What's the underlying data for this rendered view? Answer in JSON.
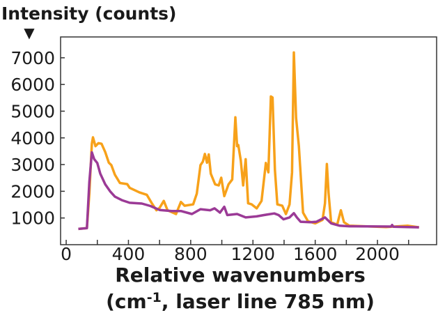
{
  "chart_data": {
    "type": "line",
    "title": "",
    "ylabel": "Intensity (counts)",
    "ylabel_arrow": "▼",
    "xlabel": "Relative wavenumbers",
    "xlabel_line2_pre": "(cm",
    "xlabel_line2_sup": "-1",
    "xlabel_line2_post": ", laser line 785 nm)",
    "xlim": [
      -36,
      2380
    ],
    "ylim": [
      0,
      7780
    ],
    "xticks": [
      0,
      400,
      800,
      1200,
      1600,
      2000
    ],
    "xticks_minor": [
      200,
      600,
      1000,
      1400,
      1800,
      2200
    ],
    "yticks": [
      1000,
      2000,
      3000,
      4000,
      5000,
      6000,
      7000
    ],
    "grid": false,
    "legend": "none",
    "series": [
      {
        "color": "#F7A11A",
        "points": [
          [
            78,
            590
          ],
          [
            133,
            620
          ],
          [
            149,
            1910
          ],
          [
            165,
            3780
          ],
          [
            172,
            4020
          ],
          [
            188,
            3690
          ],
          [
            207,
            3800
          ],
          [
            227,
            3780
          ],
          [
            251,
            3470
          ],
          [
            274,
            3070
          ],
          [
            290,
            2980
          ],
          [
            313,
            2620
          ],
          [
            345,
            2310
          ],
          [
            392,
            2270
          ],
          [
            408,
            2130
          ],
          [
            470,
            1960
          ],
          [
            518,
            1870
          ],
          [
            549,
            1560
          ],
          [
            580,
            1290
          ],
          [
            600,
            1380
          ],
          [
            627,
            1640
          ],
          [
            651,
            1290
          ],
          [
            706,
            1150
          ],
          [
            737,
            1600
          ],
          [
            761,
            1460
          ],
          [
            816,
            1510
          ],
          [
            839,
            1910
          ],
          [
            863,
            2980
          ],
          [
            878,
            3110
          ],
          [
            891,
            3400
          ],
          [
            905,
            3070
          ],
          [
            916,
            3380
          ],
          [
            929,
            2660
          ],
          [
            957,
            2260
          ],
          [
            980,
            2220
          ],
          [
            996,
            2510
          ],
          [
            1016,
            1820
          ],
          [
            1043,
            2260
          ],
          [
            1067,
            2440
          ],
          [
            1087,
            4770
          ],
          [
            1098,
            3690
          ],
          [
            1106,
            3730
          ],
          [
            1122,
            3150
          ],
          [
            1137,
            2220
          ],
          [
            1153,
            3200
          ],
          [
            1169,
            1550
          ],
          [
            1192,
            1510
          ],
          [
            1224,
            1360
          ],
          [
            1255,
            1640
          ],
          [
            1283,
            3060
          ],
          [
            1299,
            2710
          ],
          [
            1315,
            5550
          ],
          [
            1326,
            5510
          ],
          [
            1341,
            2800
          ],
          [
            1357,
            1510
          ],
          [
            1388,
            1460
          ],
          [
            1412,
            1150
          ],
          [
            1435,
            1510
          ],
          [
            1451,
            2710
          ],
          [
            1463,
            7200
          ],
          [
            1477,
            4750
          ],
          [
            1495,
            3690
          ],
          [
            1522,
            1200
          ],
          [
            1553,
            880
          ],
          [
            1600,
            800
          ],
          [
            1647,
            930
          ],
          [
            1663,
            1550
          ],
          [
            1675,
            3020
          ],
          [
            1686,
            1910
          ],
          [
            1702,
            840
          ],
          [
            1741,
            750
          ],
          [
            1765,
            1290
          ],
          [
            1785,
            840
          ],
          [
            1820,
            710
          ],
          [
            2055,
            660
          ],
          [
            2196,
            710
          ],
          [
            2267,
            650
          ]
        ]
      },
      {
        "color": "#9B3A96",
        "points": [
          [
            78,
            590
          ],
          [
            133,
            620
          ],
          [
            149,
            2350
          ],
          [
            165,
            3460
          ],
          [
            180,
            3200
          ],
          [
            200,
            3060
          ],
          [
            219,
            2660
          ],
          [
            251,
            2260
          ],
          [
            282,
            2000
          ],
          [
            313,
            1800
          ],
          [
            361,
            1660
          ],
          [
            408,
            1570
          ],
          [
            486,
            1540
          ],
          [
            541,
            1450
          ],
          [
            600,
            1300
          ],
          [
            678,
            1260
          ],
          [
            737,
            1260
          ],
          [
            808,
            1150
          ],
          [
            863,
            1330
          ],
          [
            925,
            1290
          ],
          [
            953,
            1360
          ],
          [
            988,
            1200
          ],
          [
            1016,
            1420
          ],
          [
            1035,
            1110
          ],
          [
            1098,
            1150
          ],
          [
            1153,
            1020
          ],
          [
            1224,
            1060
          ],
          [
            1271,
            1110
          ],
          [
            1337,
            1170
          ],
          [
            1365,
            1110
          ],
          [
            1396,
            950
          ],
          [
            1435,
            1020
          ],
          [
            1463,
            1180
          ],
          [
            1482,
            1020
          ],
          [
            1506,
            860
          ],
          [
            1569,
            840
          ],
          [
            1608,
            860
          ],
          [
            1663,
            1020
          ],
          [
            1702,
            800
          ],
          [
            1757,
            710
          ],
          [
            1820,
            690
          ],
          [
            2087,
            680
          ],
          [
            2094,
            740
          ],
          [
            2102,
            670
          ],
          [
            2267,
            650
          ]
        ]
      }
    ]
  }
}
